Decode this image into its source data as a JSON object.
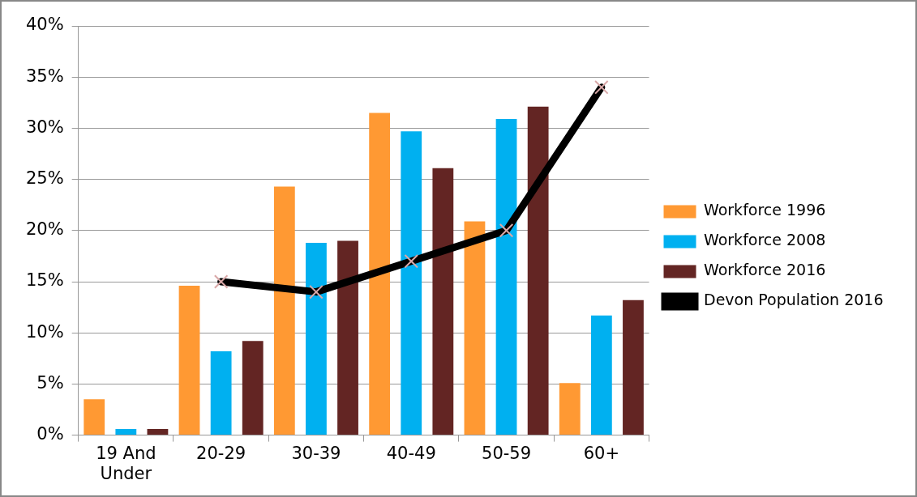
{
  "chart_data": {
    "type": "bar",
    "categories": [
      "19 And Under",
      "20-29",
      "30-39",
      "40-49",
      "50-59",
      "60+"
    ],
    "series": [
      {
        "name": "Workforce 1996",
        "color": "#ff9933",
        "values": [
          3.5,
          14.6,
          24.3,
          31.5,
          20.9,
          5.1
        ]
      },
      {
        "name": "Workforce 2008",
        "color": "#00b0f0",
        "values": [
          0.6,
          8.2,
          18.8,
          29.7,
          30.9,
          11.7
        ]
      },
      {
        "name": "Workforce 2016",
        "color": "#632523",
        "values": [
          0.6,
          9.2,
          19.0,
          26.1,
          32.1,
          13.2
        ]
      },
      {
        "name": "Devon Population 2016",
        "type": "line",
        "color": "#000000",
        "values": [
          null,
          15,
          14,
          17,
          20,
          34
        ]
      }
    ],
    "ylim": [
      0,
      40
    ],
    "yticks": [
      {
        "value": 0,
        "label": "0%"
      },
      {
        "value": 5,
        "label": "5%"
      },
      {
        "value": 10,
        "label": "10%"
      },
      {
        "value": 15,
        "label": "15%"
      },
      {
        "value": 20,
        "label": "20%"
      },
      {
        "value": 25,
        "label": "25%"
      },
      {
        "value": 30,
        "label": "30%"
      },
      {
        "value": 35,
        "label": "35%"
      },
      {
        "value": 40,
        "label": "40%"
      }
    ],
    "grid": "y",
    "legend": "right",
    "marker": "cross"
  }
}
